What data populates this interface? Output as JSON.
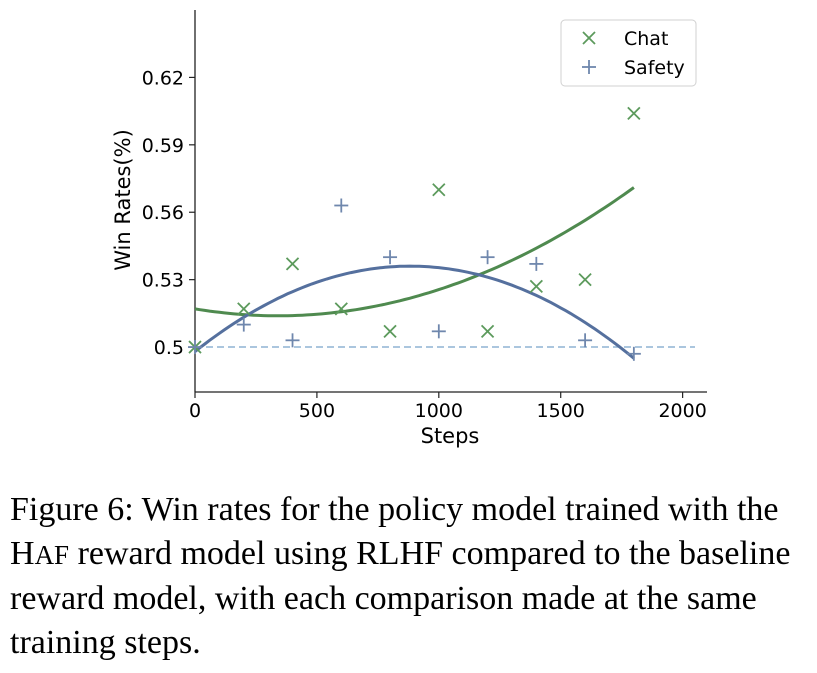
{
  "chart_data": {
    "type": "scatter",
    "xlabel": "Steps",
    "ylabel": "Win Rates(%)",
    "xlim": [
      0,
      2100
    ],
    "ylim": [
      0.48,
      0.65
    ],
    "xticks": [
      0,
      500,
      1000,
      1500,
      2000
    ],
    "yticks": [
      0.5,
      0.53,
      0.56,
      0.59,
      0.62
    ],
    "ytick_labels": [
      "0.5",
      "0.53",
      "0.56",
      "0.59",
      "0.62"
    ],
    "grid": false,
    "legend_position": "top-right",
    "reference_line": {
      "y": 0.5,
      "style": "dashed",
      "color": "#8fb3d4"
    },
    "series": [
      {
        "name": "Chat",
        "marker": "x",
        "color": "#5c9a5c",
        "x": [
          0,
          200,
          400,
          600,
          800,
          1000,
          1200,
          1400,
          1600,
          1800
        ],
        "y": [
          0.5,
          0.517,
          0.537,
          0.517,
          0.507,
          0.57,
          0.507,
          0.527,
          0.53,
          0.604
        ],
        "trend": {
          "type": "quadratic",
          "x_range": [
            0,
            1800
          ],
          "anchor_x": [
            0,
            400,
            1800
          ],
          "anchor_y": [
            0.517,
            0.514,
            0.571
          ],
          "color": "#4f8a4f"
        }
      },
      {
        "name": "Safety",
        "marker": "+",
        "color": "#6f87ad",
        "x": [
          0,
          200,
          400,
          600,
          800,
          1000,
          1200,
          1400,
          1600,
          1800
        ],
        "y": [
          0.5,
          0.51,
          0.503,
          0.563,
          0.54,
          0.507,
          0.54,
          0.537,
          0.503,
          0.497
        ],
        "trend": {
          "type": "quadratic",
          "x_range": [
            0,
            1800
          ],
          "anchor_x": [
            0,
            900,
            1800
          ],
          "anchor_y": [
            0.498,
            0.536,
            0.495
          ],
          "color": "#55709e"
        }
      }
    ]
  },
  "caption": {
    "prefix": "Figure 6: Win rates for the policy model trained with the ",
    "h": "H",
    "af": "AF",
    "suffix": " reward model using RLHF compared to the baseline reward model, with each comparison made at the same training steps."
  }
}
